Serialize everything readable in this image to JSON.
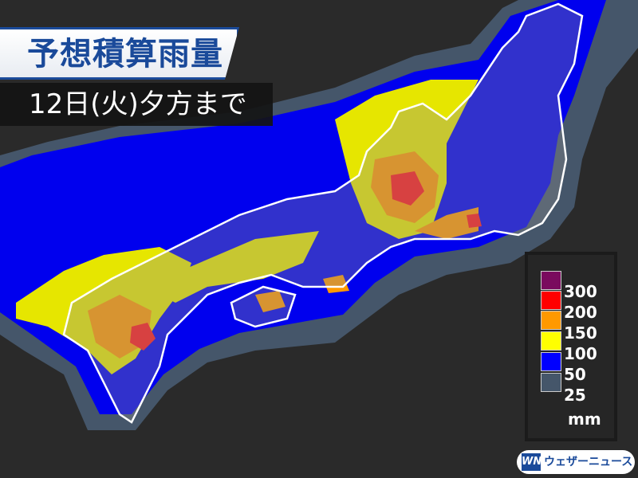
{
  "header": {
    "title": "予想積算雨量",
    "subtitle": "12日(火)夕方まで"
  },
  "legend": {
    "unit": "mm",
    "items": [
      {
        "label": "300",
        "color": "#7a0a5e"
      },
      {
        "label": "200",
        "color": "#ff0000"
      },
      {
        "label": "150",
        "color": "#ff9900"
      },
      {
        "label": "100",
        "color": "#ffff00"
      },
      {
        "label": "50",
        "color": "#0000ff"
      },
      {
        "label": "25",
        "color": "#45566a"
      }
    ]
  },
  "brand": {
    "mark": "WN",
    "name": "ウェザーニュース"
  }
}
